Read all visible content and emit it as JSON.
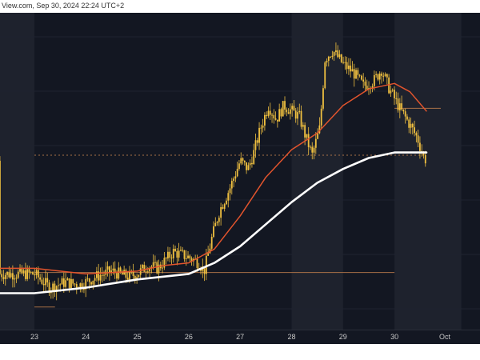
{
  "header": {
    "source_text": "View.com, Sep 30, 2024 22:24 UTC+2"
  },
  "colors": {
    "background": "#131722",
    "shaded_band": "#1e222d",
    "candle": "#f0c040",
    "ma_fast": "#e2542d",
    "ma_slow": "#ffffff",
    "level_line": "#b87a4b"
  },
  "chart_data": {
    "type": "candlestick",
    "x_tick_labels": [
      "23",
      "24",
      "25",
      "26",
      "27",
      "28",
      "29",
      "30",
      "Oct"
    ],
    "price_path": [
      [
        0,
        0.17
      ],
      [
        0.3,
        0.12
      ],
      [
        0.6,
        0.14
      ],
      [
        0.9,
        0.13
      ],
      [
        1.2,
        0.16
      ],
      [
        1.5,
        0.18
      ],
      [
        1.8,
        0.16
      ],
      [
        2.0,
        0.17
      ],
      [
        2.2,
        0.2
      ],
      [
        2.4,
        0.19
      ],
      [
        2.7,
        0.25
      ],
      [
        3.0,
        0.23
      ],
      [
        3.2,
        0.21
      ],
      [
        3.3,
        0.18
      ],
      [
        3.45,
        0.3
      ],
      [
        3.6,
        0.4
      ],
      [
        3.8,
        0.48
      ],
      [
        4.0,
        0.58
      ],
      [
        4.15,
        0.55
      ],
      [
        4.25,
        0.6
      ],
      [
        4.4,
        0.7
      ],
      [
        4.55,
        0.78
      ],
      [
        4.7,
        0.73
      ],
      [
        4.85,
        0.78
      ],
      [
        5.0,
        0.76
      ],
      [
        5.15,
        0.74
      ],
      [
        5.25,
        0.68
      ],
      [
        5.4,
        0.6
      ],
      [
        5.55,
        0.7
      ],
      [
        5.65,
        0.95
      ],
      [
        5.8,
        0.98
      ],
      [
        6.0,
        0.93
      ],
      [
        6.2,
        0.9
      ],
      [
        6.4,
        0.85
      ],
      [
        6.6,
        0.87
      ],
      [
        6.75,
        0.91
      ],
      [
        6.9,
        0.84
      ],
      [
        7.1,
        0.77
      ],
      [
        7.3,
        0.71
      ],
      [
        7.45,
        0.66
      ],
      [
        7.55,
        0.6
      ],
      [
        7.62,
        0.58
      ]
    ],
    "ma_fast_path": [
      [
        0,
        0.19
      ],
      [
        1.0,
        0.17
      ],
      [
        2.0,
        0.18
      ],
      [
        2.5,
        0.2
      ],
      [
        3.0,
        0.21
      ],
      [
        3.5,
        0.26
      ],
      [
        4.0,
        0.38
      ],
      [
        4.5,
        0.52
      ],
      [
        5.0,
        0.62
      ],
      [
        5.5,
        0.68
      ],
      [
        6.0,
        0.78
      ],
      [
        6.5,
        0.84
      ],
      [
        7.0,
        0.86
      ],
      [
        7.3,
        0.83
      ],
      [
        7.62,
        0.76
      ]
    ],
    "ma_slow_path": [
      [
        0,
        0.1
      ],
      [
        1.0,
        0.12
      ],
      [
        2.0,
        0.15
      ],
      [
        3.0,
        0.17
      ],
      [
        3.5,
        0.21
      ],
      [
        4.0,
        0.27
      ],
      [
        4.5,
        0.35
      ],
      [
        5.0,
        0.43
      ],
      [
        5.5,
        0.5
      ],
      [
        6.0,
        0.55
      ],
      [
        6.5,
        0.59
      ],
      [
        7.0,
        0.61
      ],
      [
        7.62,
        0.61
      ]
    ],
    "horizontal_levels": [
      {
        "y": 0.6,
        "from": 0,
        "to": 7.62,
        "style": "dotted"
      },
      {
        "y": 0.175,
        "from": 0,
        "to": 7.0,
        "style": "solid"
      },
      {
        "y": 0.77,
        "from": 7.0,
        "to": 7.9,
        "style": "solid"
      },
      {
        "y": 0.05,
        "from": 0,
        "to": 0.4,
        "style": "solid"
      }
    ],
    "shaded_bands": [
      {
        "from": -0.7,
        "to": 0
      },
      {
        "from": 5.0,
        "to": 6.0
      },
      {
        "from": 7.0,
        "to": 8.3
      }
    ]
  }
}
